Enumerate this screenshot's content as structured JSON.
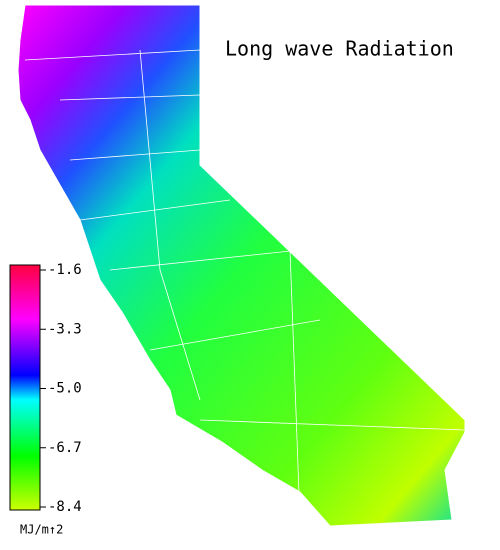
{
  "title": "Long wave Radiation",
  "legend": {
    "ticks": [
      -1.6,
      -3.3,
      {
        "value": -5,
        "label": "-5.0"
      },
      -6.7,
      -8.4
    ],
    "unit": "MJ/m↑2"
  }
}
